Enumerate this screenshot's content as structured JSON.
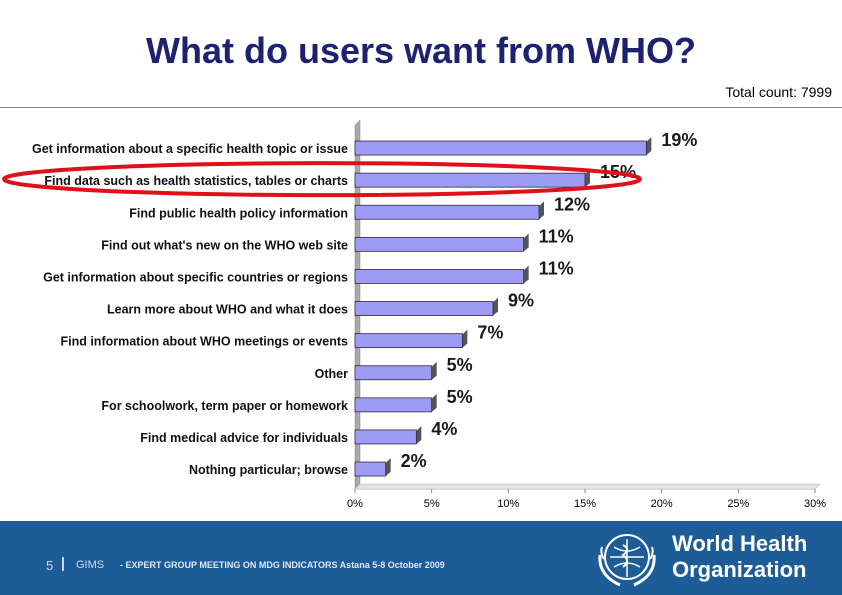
{
  "slide": {
    "title": "What do users want from WHO?",
    "total_count": "Total count: 7999"
  },
  "chart_data": {
    "type": "bar",
    "orientation": "horizontal",
    "categories": [
      "Get information about a specific health topic or issue",
      "Find data such as health statistics, tables or charts",
      "Find public health policy information",
      "Find out what's new on the WHO web site",
      "Get information about specific countries or regions",
      "Learn more about WHO and what it does",
      "Find information about WHO meetings or events",
      "Other",
      "For schoolwork, term paper or homework",
      "Find medical advice for individuals",
      "Nothing particular; browse"
    ],
    "values": [
      19,
      15,
      12,
      11,
      11,
      9,
      7,
      5,
      5,
      4,
      2
    ],
    "data_labels": [
      "19%",
      "15%",
      "12%",
      "11%",
      "11%",
      "9%",
      "7%",
      "5%",
      "5%",
      "4%",
      "2%"
    ],
    "xlim": [
      0,
      30
    ],
    "x_ticks": [
      0,
      5,
      10,
      15,
      20,
      25,
      30
    ],
    "x_tick_labels": [
      "0%",
      "5%",
      "10%",
      "15%",
      "20%",
      "25%",
      "30%"
    ],
    "highlight_index": 1,
    "colors": {
      "bar_fill": "#9c9cf4",
      "bar_edge": "#2a2a4a",
      "bar_shadow": "#555555",
      "highlight_ellipse": "#e0101a",
      "grid": "#bbbbbb"
    },
    "grid": false
  },
  "footer": {
    "page_number": "5",
    "program": "GIMS",
    "meeting": "- EXPERT GROUP MEETING ON MDG INDICATORS Astana 5-8 October 2009",
    "org_line1": "World Health",
    "org_line2": "Organization",
    "logo_icon": "who-emblem-icon",
    "background_color": "#1d5c96"
  }
}
